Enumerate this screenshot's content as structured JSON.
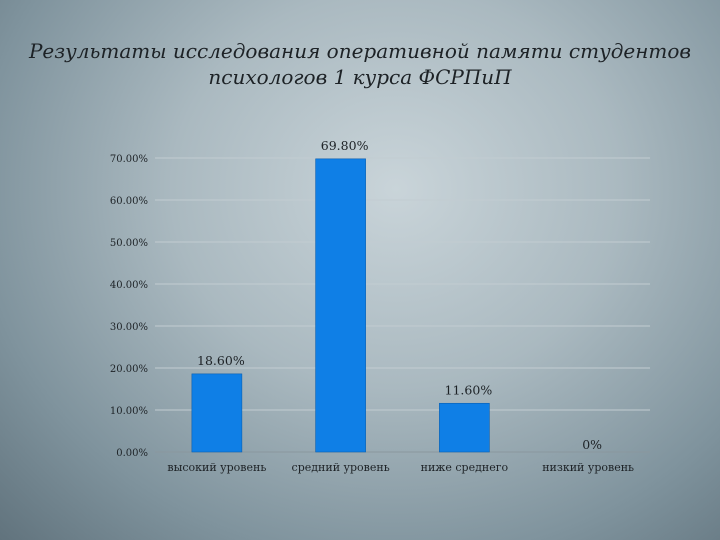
{
  "title_lines": [
    "Результаты исследования оперативной памяти студентов",
    "психологов 1 курса ФСРПиП"
  ],
  "chart_data": {
    "type": "bar",
    "categories": [
      "высокий уровень",
      "средний уровень",
      "ниже среднего",
      "низкий уровень"
    ],
    "values": [
      18.6,
      69.8,
      11.6,
      0
    ],
    "data_labels": [
      "18.60%",
      "69.80%",
      "11.60%",
      "0%"
    ],
    "ylim": [
      0,
      70
    ],
    "yticks": [
      0,
      10,
      20,
      30,
      40,
      50,
      60,
      70
    ],
    "ytick_labels": [
      "0.00%",
      "10.00%",
      "20.00%",
      "30.00%",
      "40.00%",
      "50.00%",
      "60.00%",
      "70.00%"
    ],
    "grid": true,
    "legend": "none",
    "bar_color": "#0f7fe6"
  }
}
